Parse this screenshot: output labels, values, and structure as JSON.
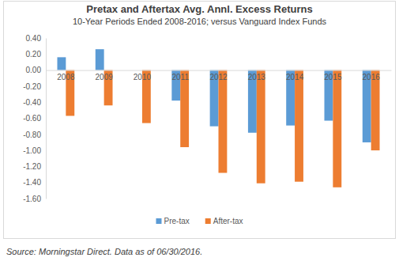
{
  "chart_data": {
    "type": "bar",
    "title": "Pretax and Aftertax Avg. Annl. Excess Returns",
    "subtitle": "10-Year Periods Ended 2008-2016; versus Vanguard Index Funds",
    "annotations": [
      "Source: Morningstar Direct. Data as of 06/30/2016."
    ],
    "categories": [
      "2008",
      "2009",
      "2010",
      "2011",
      "2012",
      "2013",
      "2014",
      "2015",
      "2016"
    ],
    "series": [
      {
        "name": "Pre-tax",
        "color": "#5b9bd5",
        "values": [
          0.16,
          0.26,
          0,
          -0.38,
          -0.7,
          -0.78,
          -0.69,
          -0.63,
          -0.9
        ]
      },
      {
        "name": "After-tax",
        "color": "#ed7d31",
        "values": [
          -0.57,
          -0.44,
          -0.66,
          -0.96,
          -1.28,
          -1.41,
          -1.39,
          -1.46,
          -1.0
        ]
      }
    ],
    "ylim": [
      -1.6,
      0.4
    ],
    "yticks": [
      {
        "value": 0.4,
        "label": "0.40"
      },
      {
        "value": 0.2,
        "label": "0.20"
      },
      {
        "value": 0,
        "label": "0.00"
      },
      {
        "value": -0.2,
        "label": "-0.20"
      },
      {
        "value": -0.4,
        "label": "-0.40"
      },
      {
        "value": -0.6,
        "label": "-0.60"
      },
      {
        "value": -0.8,
        "label": "-0.80"
      },
      {
        "value": -1.0,
        "label": "-1.00"
      },
      {
        "value": -1.2,
        "label": "-1.20"
      },
      {
        "value": -1.4,
        "label": "-1.40"
      },
      {
        "value": -1.6,
        "label": "-1.60"
      }
    ],
    "grid": false,
    "legend": "bottom"
  }
}
